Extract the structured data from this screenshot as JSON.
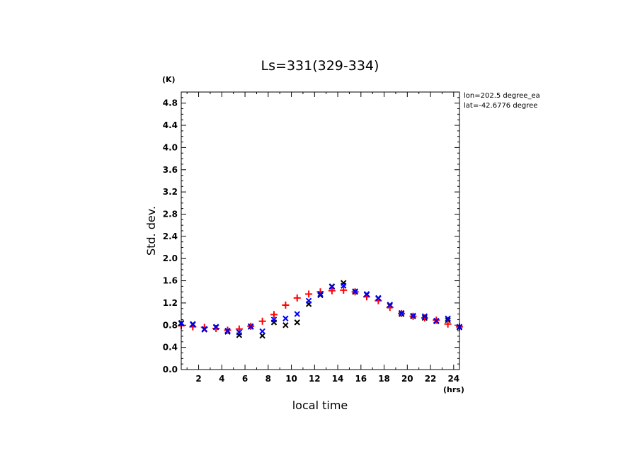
{
  "chart_data": {
    "type": "scatter",
    "title": "Ls=331(329-334)",
    "xlabel": "local time",
    "ylabel": "Std. dev.",
    "x_unit": "(hrs)",
    "y_unit": "(K)",
    "xlim": [
      0.5,
      24.5
    ],
    "ylim": [
      0,
      5.0
    ],
    "x_ticks": [
      2,
      4,
      6,
      8,
      10,
      12,
      14,
      16,
      18,
      20,
      22,
      24
    ],
    "y_ticks": [
      0.0,
      0.4,
      0.8,
      1.2,
      1.6,
      2.0,
      2.4,
      2.8,
      3.2,
      3.6,
      4.0,
      4.4,
      4.8
    ],
    "annotations": [
      "lon=202.5 degree_ea",
      "lat=-42.6776 degree"
    ],
    "series": [
      {
        "marker": "x",
        "color": "#000000",
        "x": [
          0.5,
          1.5,
          2.5,
          3.5,
          4.5,
          5.5,
          6.5,
          7.5,
          8.5,
          9.5,
          10.5,
          11.5,
          12.5,
          13.5,
          14.5,
          15.5,
          16.5,
          17.5,
          18.5,
          19.5,
          20.5,
          21.5,
          22.5,
          23.5,
          24.5
        ],
        "values": [
          0.84,
          0.82,
          0.72,
          0.76,
          0.68,
          0.62,
          0.78,
          0.61,
          0.85,
          0.8,
          0.85,
          1.18,
          1.34,
          1.5,
          1.56,
          1.4,
          1.35,
          1.28,
          1.15,
          1.0,
          0.96,
          0.93,
          0.87,
          0.89,
          0.76
        ]
      },
      {
        "marker": "+",
        "color": "#ff0000",
        "x": [
          0.5,
          1.5,
          2.5,
          3.5,
          4.5,
          5.5,
          6.5,
          7.5,
          8.5,
          9.5,
          10.5,
          11.5,
          12.5,
          13.5,
          14.5,
          15.5,
          16.5,
          17.5,
          18.5,
          19.5,
          20.5,
          21.5,
          22.5,
          23.5,
          24.5
        ],
        "values": [
          0.79,
          0.77,
          0.76,
          0.74,
          0.71,
          0.73,
          0.78,
          0.87,
          0.99,
          1.16,
          1.29,
          1.36,
          1.4,
          1.42,
          1.43,
          1.4,
          1.31,
          1.24,
          1.12,
          1.01,
          0.96,
          0.93,
          0.89,
          0.82,
          0.77
        ]
      },
      {
        "marker": "x",
        "color": "#0000ff",
        "x": [
          0.5,
          1.5,
          2.5,
          3.5,
          4.5,
          5.5,
          6.5,
          7.5,
          8.5,
          9.5,
          10.5,
          11.5,
          12.5,
          13.5,
          14.5,
          15.5,
          16.5,
          17.5,
          18.5,
          19.5,
          20.5,
          21.5,
          22.5,
          23.5,
          24.5
        ],
        "values": [
          0.83,
          0.81,
          0.73,
          0.77,
          0.7,
          0.67,
          0.77,
          0.69,
          0.9,
          0.92,
          1.0,
          1.24,
          1.36,
          1.49,
          1.51,
          1.41,
          1.36,
          1.29,
          1.17,
          1.02,
          0.97,
          0.96,
          0.88,
          0.92,
          0.77
        ]
      }
    ]
  }
}
